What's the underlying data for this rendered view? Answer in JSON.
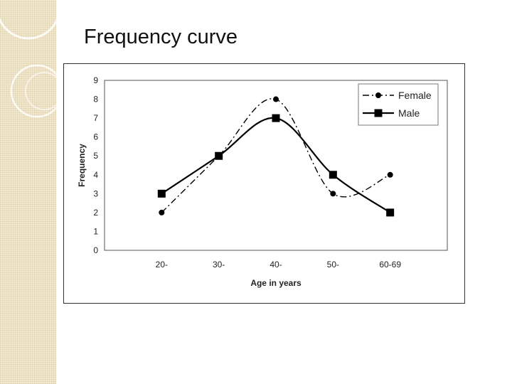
{
  "slide": {
    "title": "Frequency curve"
  },
  "chart_data": {
    "type": "line",
    "categories": [
      "20-",
      "30-",
      "40-",
      "50-",
      "60-69"
    ],
    "series": [
      {
        "name": "Female",
        "values": [
          2,
          5,
          8,
          3,
          4
        ],
        "style": "dash-dot",
        "marker": "circle",
        "color": "#000000"
      },
      {
        "name": "Male",
        "values": [
          3,
          5,
          7,
          4,
          2
        ],
        "style": "solid",
        "marker": "square",
        "color": "#000000"
      }
    ],
    "yticks": [
      "0",
      "1",
      "2",
      "3",
      "4",
      "5",
      "6",
      "7",
      "8",
      "9"
    ],
    "ylim": [
      0,
      9
    ],
    "xlabel": "Age in years",
    "ylabel": "Frequency",
    "grid": false,
    "legend": "top-right",
    "smooth": true
  }
}
